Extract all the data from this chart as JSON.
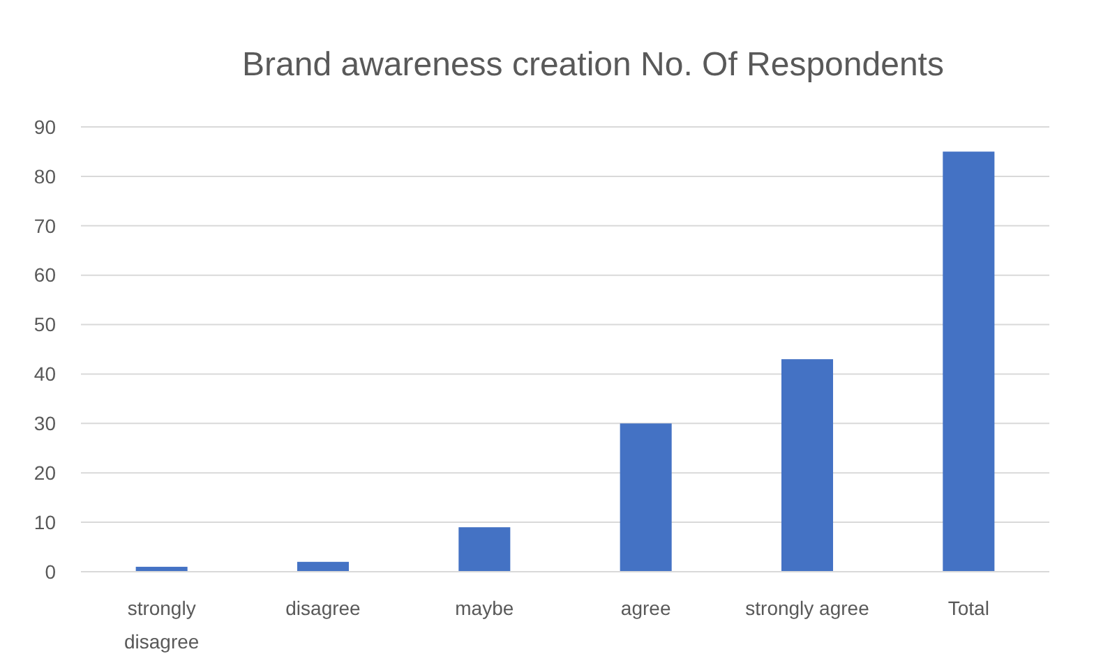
{
  "chart_data": {
    "type": "bar",
    "title": "Brand awareness creation No. Of Respondents",
    "categories": [
      "strongly disagree",
      "disagree",
      "maybe",
      "agree",
      "strongly agree",
      "Total"
    ],
    "values": [
      1,
      2,
      9,
      30,
      43,
      85
    ],
    "color": "#4472c4",
    "ylim": [
      0,
      90
    ],
    "yticks": [
      0,
      10,
      20,
      30,
      40,
      50,
      60,
      70,
      80,
      90
    ],
    "grid": "y"
  }
}
